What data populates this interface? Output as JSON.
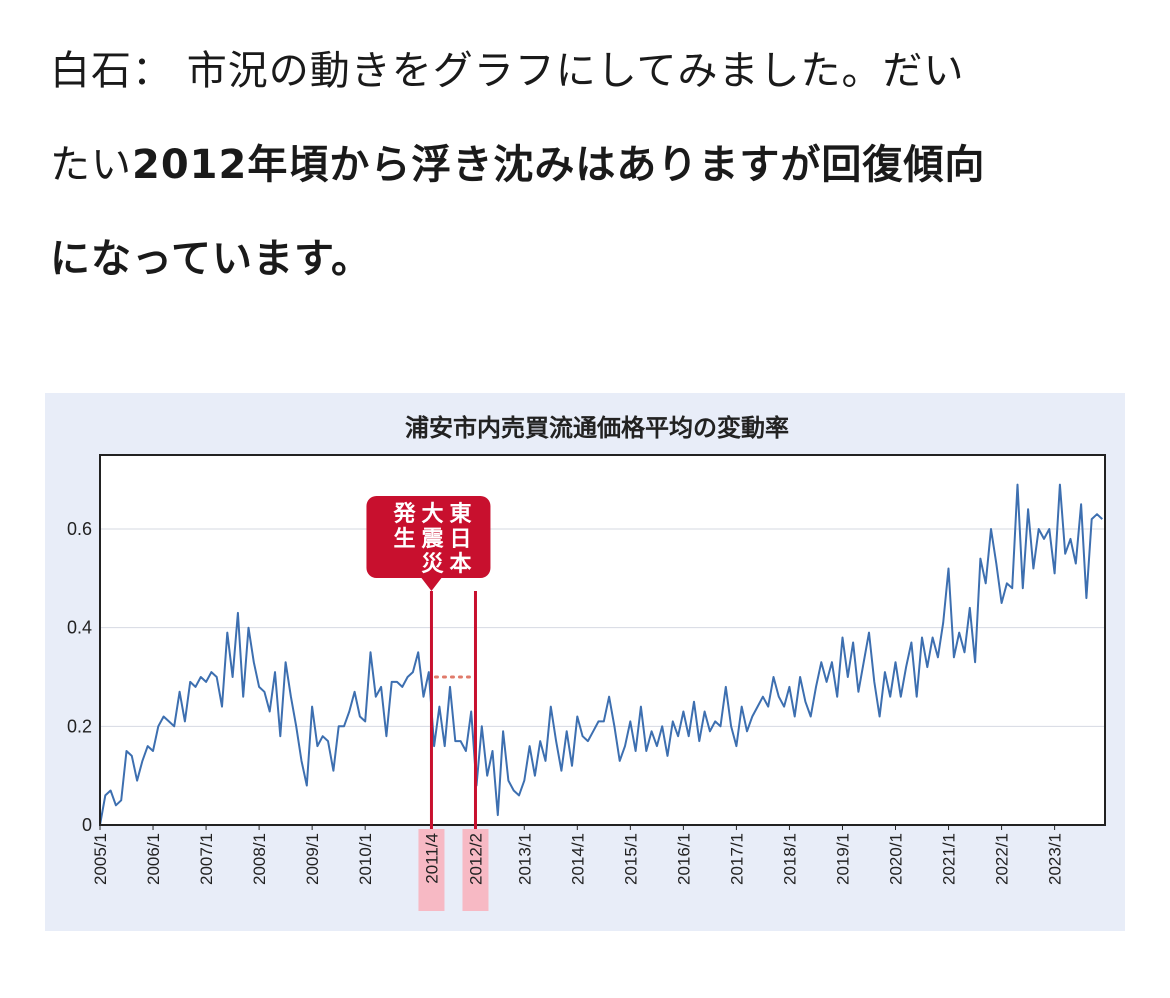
{
  "article": {
    "speaker": "白石：",
    "line1_rest": "市況の動きをグラフにしてみました。だい",
    "line2_prefix": "たい",
    "line2_bold": "2012年頃から浮き沈みはありますが回復傾向",
    "line3_bold": "になっています。"
  },
  "chart_data": {
    "type": "line",
    "title": "浦安市内売買流通価格平均の変動率",
    "ylim": [
      0,
      0.75
    ],
    "yticks": [
      0,
      0.2,
      0.4,
      0.6
    ],
    "ytick_labels": [
      "0",
      "0.2",
      "0.4",
      "0.6"
    ],
    "xlim": [
      2005.0,
      2023.95
    ],
    "xticks": [
      {
        "label": "2005/1",
        "x": 2005.0
      },
      {
        "label": "2006/1",
        "x": 2006.0
      },
      {
        "label": "2007/1",
        "x": 2007.0
      },
      {
        "label": "2008/1",
        "x": 2008.0
      },
      {
        "label": "2009/1",
        "x": 2009.0
      },
      {
        "label": "2010/1",
        "x": 2010.0
      },
      {
        "label": "2011/4",
        "x": 2011.25,
        "highlight": true
      },
      {
        "label": "2012/2",
        "x": 2012.08,
        "highlight": true
      },
      {
        "label": "2013/1",
        "x": 2013.0
      },
      {
        "label": "2014/1",
        "x": 2014.0
      },
      {
        "label": "2015/1",
        "x": 2015.0
      },
      {
        "label": "2016/1",
        "x": 2016.0
      },
      {
        "label": "2017/1",
        "x": 2017.0
      },
      {
        "label": "2018/1",
        "x": 2018.0
      },
      {
        "label": "2019/1",
        "x": 2019.0
      },
      {
        "label": "2020/1",
        "x": 2020.0
      },
      {
        "label": "2021/1",
        "x": 2021.0
      },
      {
        "label": "2022/1",
        "x": 2022.0
      },
      {
        "label": "2023/1",
        "x": 2023.0
      }
    ],
    "grid": true,
    "series": [
      {
        "color": "#3d6fb0",
        "points": [
          [
            2005.0,
            0.0
          ],
          [
            2005.1,
            0.06
          ],
          [
            2005.2,
            0.07
          ],
          [
            2005.3,
            0.04
          ],
          [
            2005.4,
            0.05
          ],
          [
            2005.5,
            0.15
          ],
          [
            2005.6,
            0.14
          ],
          [
            2005.7,
            0.09
          ],
          [
            2005.8,
            0.13
          ],
          [
            2005.9,
            0.16
          ],
          [
            2006.0,
            0.15
          ],
          [
            2006.1,
            0.2
          ],
          [
            2006.2,
            0.22
          ],
          [
            2006.3,
            0.21
          ],
          [
            2006.4,
            0.2
          ],
          [
            2006.5,
            0.27
          ],
          [
            2006.6,
            0.21
          ],
          [
            2006.7,
            0.29
          ],
          [
            2006.8,
            0.28
          ],
          [
            2006.9,
            0.3
          ],
          [
            2007.0,
            0.29
          ],
          [
            2007.1,
            0.31
          ],
          [
            2007.2,
            0.3
          ],
          [
            2007.3,
            0.24
          ],
          [
            2007.4,
            0.39
          ],
          [
            2007.5,
            0.3
          ],
          [
            2007.6,
            0.43
          ],
          [
            2007.7,
            0.26
          ],
          [
            2007.8,
            0.4
          ],
          [
            2007.9,
            0.33
          ],
          [
            2008.0,
            0.28
          ],
          [
            2008.1,
            0.27
          ],
          [
            2008.2,
            0.23
          ],
          [
            2008.3,
            0.31
          ],
          [
            2008.4,
            0.18
          ],
          [
            2008.5,
            0.33
          ],
          [
            2008.6,
            0.26
          ],
          [
            2008.7,
            0.2
          ],
          [
            2008.8,
            0.13
          ],
          [
            2008.9,
            0.08
          ],
          [
            2009.0,
            0.24
          ],
          [
            2009.1,
            0.16
          ],
          [
            2009.2,
            0.18
          ],
          [
            2009.3,
            0.17
          ],
          [
            2009.4,
            0.11
          ],
          [
            2009.5,
            0.2
          ],
          [
            2009.6,
            0.2
          ],
          [
            2009.7,
            0.23
          ],
          [
            2009.8,
            0.27
          ],
          [
            2009.9,
            0.22
          ],
          [
            2010.0,
            0.21
          ],
          [
            2010.1,
            0.35
          ],
          [
            2010.2,
            0.26
          ],
          [
            2010.3,
            0.28
          ],
          [
            2010.4,
            0.18
          ],
          [
            2010.5,
            0.29
          ],
          [
            2010.6,
            0.29
          ],
          [
            2010.7,
            0.28
          ],
          [
            2010.8,
            0.3
          ],
          [
            2010.9,
            0.31
          ],
          [
            2011.0,
            0.35
          ],
          [
            2011.1,
            0.26
          ],
          [
            2011.2,
            0.31
          ],
          [
            2011.3,
            0.16
          ],
          [
            2011.4,
            0.24
          ],
          [
            2011.5,
            0.16
          ],
          [
            2011.6,
            0.28
          ],
          [
            2011.7,
            0.17
          ],
          [
            2011.8,
            0.17
          ],
          [
            2011.9,
            0.15
          ],
          [
            2012.0,
            0.23
          ],
          [
            2012.1,
            0.08
          ],
          [
            2012.2,
            0.2
          ],
          [
            2012.3,
            0.1
          ],
          [
            2012.4,
            0.15
          ],
          [
            2012.5,
            0.02
          ],
          [
            2012.6,
            0.19
          ],
          [
            2012.7,
            0.09
          ],
          [
            2012.8,
            0.07
          ],
          [
            2012.9,
            0.06
          ],
          [
            2013.0,
            0.09
          ],
          [
            2013.1,
            0.16
          ],
          [
            2013.2,
            0.1
          ],
          [
            2013.3,
            0.17
          ],
          [
            2013.4,
            0.13
          ],
          [
            2013.5,
            0.24
          ],
          [
            2013.6,
            0.17
          ],
          [
            2013.7,
            0.11
          ],
          [
            2013.8,
            0.19
          ],
          [
            2013.9,
            0.12
          ],
          [
            2014.0,
            0.22
          ],
          [
            2014.1,
            0.18
          ],
          [
            2014.2,
            0.17
          ],
          [
            2014.3,
            0.19
          ],
          [
            2014.4,
            0.21
          ],
          [
            2014.5,
            0.21
          ],
          [
            2014.6,
            0.26
          ],
          [
            2014.7,
            0.2
          ],
          [
            2014.8,
            0.13
          ],
          [
            2014.9,
            0.16
          ],
          [
            2015.0,
            0.21
          ],
          [
            2015.1,
            0.15
          ],
          [
            2015.2,
            0.24
          ],
          [
            2015.3,
            0.15
          ],
          [
            2015.4,
            0.19
          ],
          [
            2015.5,
            0.16
          ],
          [
            2015.6,
            0.2
          ],
          [
            2015.7,
            0.14
          ],
          [
            2015.8,
            0.21
          ],
          [
            2015.9,
            0.18
          ],
          [
            2016.0,
            0.23
          ],
          [
            2016.1,
            0.18
          ],
          [
            2016.2,
            0.25
          ],
          [
            2016.3,
            0.17
          ],
          [
            2016.4,
            0.23
          ],
          [
            2016.5,
            0.19
          ],
          [
            2016.6,
            0.21
          ],
          [
            2016.7,
            0.2
          ],
          [
            2016.8,
            0.28
          ],
          [
            2016.9,
            0.2
          ],
          [
            2017.0,
            0.16
          ],
          [
            2017.1,
            0.24
          ],
          [
            2017.2,
            0.19
          ],
          [
            2017.3,
            0.22
          ],
          [
            2017.4,
            0.24
          ],
          [
            2017.5,
            0.26
          ],
          [
            2017.6,
            0.24
          ],
          [
            2017.7,
            0.3
          ],
          [
            2017.8,
            0.26
          ],
          [
            2017.9,
            0.24
          ],
          [
            2018.0,
            0.28
          ],
          [
            2018.1,
            0.22
          ],
          [
            2018.2,
            0.3
          ],
          [
            2018.3,
            0.25
          ],
          [
            2018.4,
            0.22
          ],
          [
            2018.5,
            0.28
          ],
          [
            2018.6,
            0.33
          ],
          [
            2018.7,
            0.29
          ],
          [
            2018.8,
            0.33
          ],
          [
            2018.9,
            0.26
          ],
          [
            2019.0,
            0.38
          ],
          [
            2019.1,
            0.3
          ],
          [
            2019.2,
            0.37
          ],
          [
            2019.3,
            0.27
          ],
          [
            2019.4,
            0.33
          ],
          [
            2019.5,
            0.39
          ],
          [
            2019.6,
            0.29
          ],
          [
            2019.7,
            0.22
          ],
          [
            2019.8,
            0.31
          ],
          [
            2019.9,
            0.26
          ],
          [
            2020.0,
            0.33
          ],
          [
            2020.1,
            0.26
          ],
          [
            2020.2,
            0.32
          ],
          [
            2020.3,
            0.37
          ],
          [
            2020.4,
            0.26
          ],
          [
            2020.5,
            0.38
          ],
          [
            2020.6,
            0.32
          ],
          [
            2020.7,
            0.38
          ],
          [
            2020.8,
            0.34
          ],
          [
            2020.9,
            0.41
          ],
          [
            2021.0,
            0.52
          ],
          [
            2021.1,
            0.34
          ],
          [
            2021.2,
            0.39
          ],
          [
            2021.3,
            0.35
          ],
          [
            2021.4,
            0.44
          ],
          [
            2021.5,
            0.33
          ],
          [
            2021.6,
            0.54
          ],
          [
            2021.7,
            0.49
          ],
          [
            2021.8,
            0.6
          ],
          [
            2021.9,
            0.53
          ],
          [
            2022.0,
            0.45
          ],
          [
            2022.1,
            0.49
          ],
          [
            2022.2,
            0.48
          ],
          [
            2022.3,
            0.69
          ],
          [
            2022.4,
            0.48
          ],
          [
            2022.5,
            0.64
          ],
          [
            2022.6,
            0.52
          ],
          [
            2022.7,
            0.6
          ],
          [
            2022.8,
            0.58
          ],
          [
            2022.9,
            0.6
          ],
          [
            2023.0,
            0.51
          ],
          [
            2023.1,
            0.69
          ],
          [
            2023.2,
            0.55
          ],
          [
            2023.3,
            0.58
          ],
          [
            2023.4,
            0.53
          ],
          [
            2023.5,
            0.65
          ],
          [
            2023.6,
            0.46
          ],
          [
            2023.7,
            0.62
          ],
          [
            2023.8,
            0.63
          ],
          [
            2023.9,
            0.62
          ]
        ]
      }
    ],
    "annotation": {
      "text_columns": [
        "東日本",
        "大震災",
        "発生"
      ],
      "event_lines_x": [
        2011.25,
        2012.08
      ],
      "connector_y": 0.3,
      "color": "#c8102e",
      "highlight_fill": "#f7b9c4"
    }
  }
}
